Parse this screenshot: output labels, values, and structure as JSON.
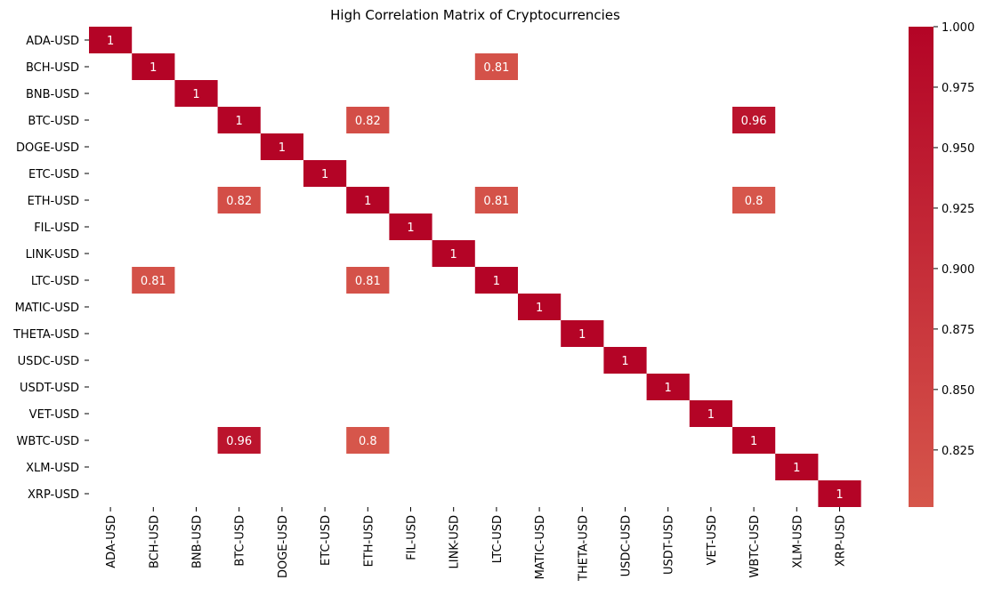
{
  "chart_data": {
    "type": "heatmap",
    "title": "High Correlation Matrix of Cryptocurrencies",
    "xlabel": "",
    "ylabel": "",
    "labels": [
      "ADA-USD",
      "BCH-USD",
      "BNB-USD",
      "BTC-USD",
      "DOGE-USD",
      "ETC-USD",
      "ETH-USD",
      "FIL-USD",
      "LINK-USD",
      "LTC-USD",
      "MATIC-USD",
      "THETA-USD",
      "USDC-USD",
      "USDT-USD",
      "VET-USD",
      "WBTC-USD",
      "XLM-USD",
      "XRP-USD"
    ],
    "cells": [
      {
        "row": "ADA-USD",
        "col": "ADA-USD",
        "value": 1
      },
      {
        "row": "BCH-USD",
        "col": "BCH-USD",
        "value": 1
      },
      {
        "row": "BCH-USD",
        "col": "LTC-USD",
        "value": 0.81
      },
      {
        "row": "BNB-USD",
        "col": "BNB-USD",
        "value": 1
      },
      {
        "row": "BTC-USD",
        "col": "BTC-USD",
        "value": 1
      },
      {
        "row": "BTC-USD",
        "col": "ETH-USD",
        "value": 0.82
      },
      {
        "row": "BTC-USD",
        "col": "WBTC-USD",
        "value": 0.96
      },
      {
        "row": "DOGE-USD",
        "col": "DOGE-USD",
        "value": 1
      },
      {
        "row": "ETC-USD",
        "col": "ETC-USD",
        "value": 1
      },
      {
        "row": "ETH-USD",
        "col": "BTC-USD",
        "value": 0.82
      },
      {
        "row": "ETH-USD",
        "col": "ETH-USD",
        "value": 1
      },
      {
        "row": "ETH-USD",
        "col": "LTC-USD",
        "value": 0.81
      },
      {
        "row": "ETH-USD",
        "col": "WBTC-USD",
        "value": 0.8
      },
      {
        "row": "FIL-USD",
        "col": "FIL-USD",
        "value": 1
      },
      {
        "row": "LINK-USD",
        "col": "LINK-USD",
        "value": 1
      },
      {
        "row": "LTC-USD",
        "col": "BCH-USD",
        "value": 0.81
      },
      {
        "row": "LTC-USD",
        "col": "ETH-USD",
        "value": 0.81
      },
      {
        "row": "LTC-USD",
        "col": "LTC-USD",
        "value": 1
      },
      {
        "row": "MATIC-USD",
        "col": "MATIC-USD",
        "value": 1
      },
      {
        "row": "THETA-USD",
        "col": "THETA-USD",
        "value": 1
      },
      {
        "row": "USDC-USD",
        "col": "USDC-USD",
        "value": 1
      },
      {
        "row": "USDT-USD",
        "col": "USDT-USD",
        "value": 1
      },
      {
        "row": "VET-USD",
        "col": "VET-USD",
        "value": 1
      },
      {
        "row": "WBTC-USD",
        "col": "BTC-USD",
        "value": 0.96
      },
      {
        "row": "WBTC-USD",
        "col": "ETH-USD",
        "value": 0.8
      },
      {
        "row": "WBTC-USD",
        "col": "WBTC-USD",
        "value": 1
      },
      {
        "row": "XLM-USD",
        "col": "XLM-USD",
        "value": 1
      },
      {
        "row": "XRP-USD",
        "col": "XRP-USD",
        "value": 1
      }
    ],
    "colorbar": {
      "vmin": 0.8,
      "vmax": 1.0,
      "ticks": [
        0.825,
        0.85,
        0.875,
        0.9,
        0.925,
        0.95,
        0.975,
        1.0
      ],
      "tick_labels": [
        "0.825",
        "0.850",
        "0.875",
        "0.900",
        "0.925",
        "0.950",
        "0.975",
        "1.000"
      ]
    },
    "colors": {
      "low": "#d6564b",
      "high": "#b40426"
    },
    "grid": false,
    "legend": "colorbar-right"
  }
}
